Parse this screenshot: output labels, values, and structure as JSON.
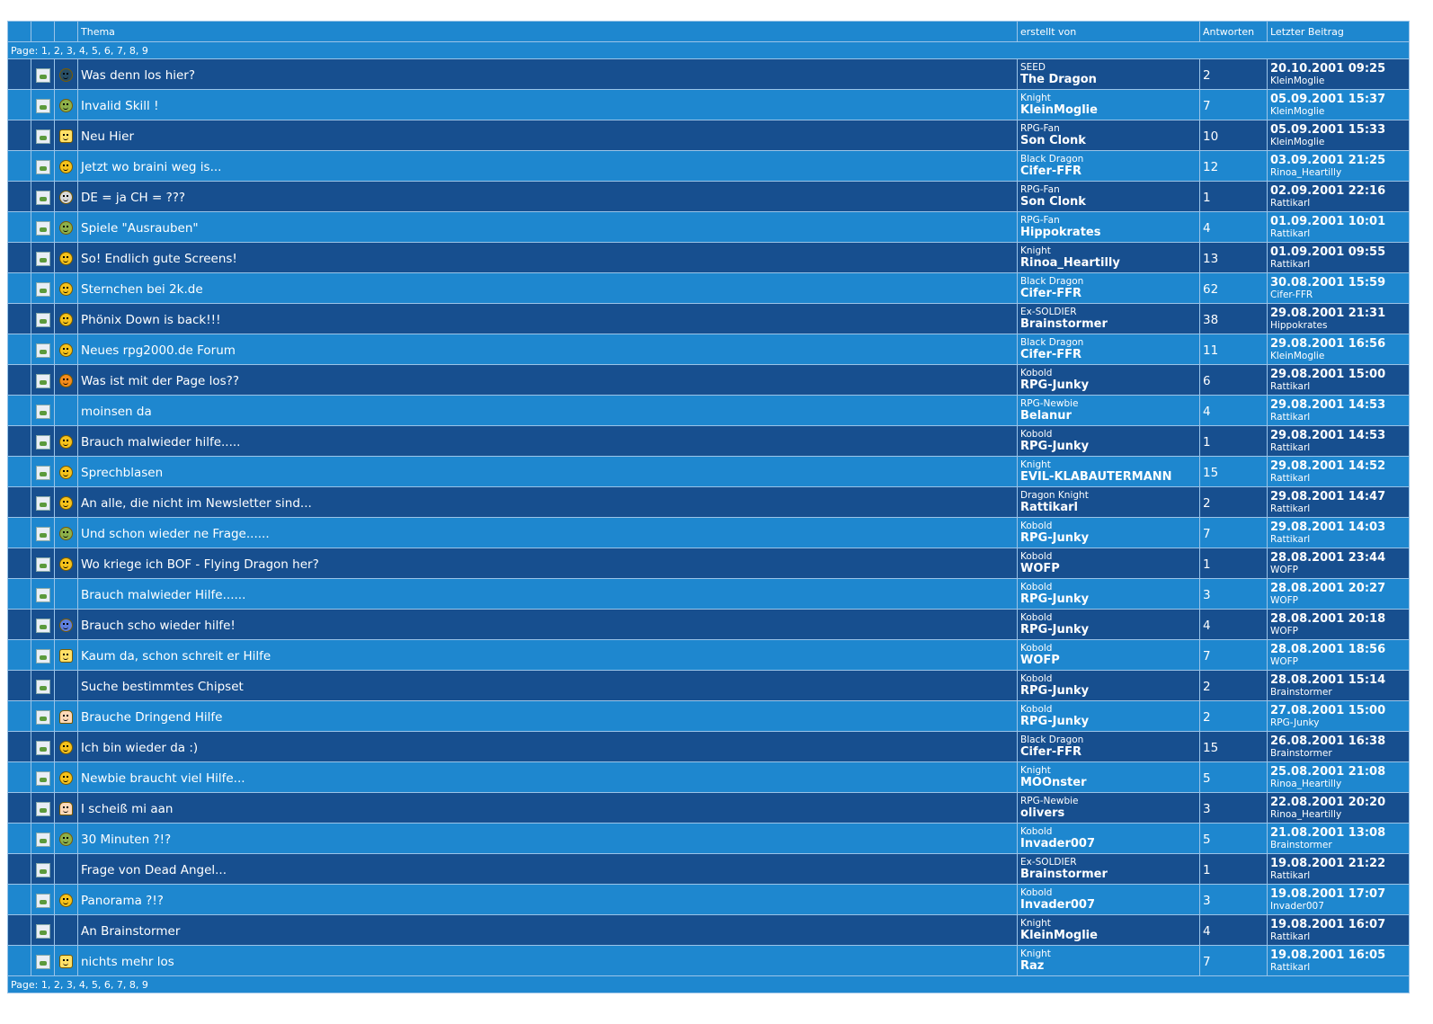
{
  "header": {
    "col_topic": "Thema",
    "col_author": "erstellt von",
    "col_replies": "Antworten",
    "col_last": "Letzter Beitrag"
  },
  "pagination": {
    "label": "Page: ",
    "pages": [
      "1",
      "2",
      "3",
      "4",
      "5",
      "6",
      "7",
      "8",
      "9"
    ]
  },
  "threads": [
    {
      "title": "Was denn los hier?",
      "rank": "SEED",
      "author": "The Dragon",
      "replies": "2",
      "last_date": "20.10.2001 09:25",
      "last_by": "KleinMoglie",
      "icon": "dark-smiley-icon",
      "emo": "dark"
    },
    {
      "title": "Invalid Skill !",
      "rank": "Knight",
      "author": "KleinMoglie",
      "replies": "7",
      "last_date": "05.09.2001 15:37",
      "last_by": "KleinMoglie",
      "icon": "confused-smiley-icon",
      "emo": "green"
    },
    {
      "title": "Neu Hier",
      "rank": "RPG-Fan",
      "author": "Son Clonk",
      "replies": "10",
      "last_date": "05.09.2001 15:33",
      "last_by": "KleinMoglie",
      "icon": "hand-icon",
      "emo": "hand"
    },
    {
      "title": "Jetzt wo braini weg is...",
      "rank": "Black Dragon",
      "author": "Cifer-FFR",
      "replies": "12",
      "last_date": "03.09.2001 21:25",
      "last_by": "Rinoa_Heartilly",
      "icon": "smiley-icon",
      "emo": ""
    },
    {
      "title": "DE = ja CH = ???",
      "rank": "RPG-Fan",
      "author": "Son Clonk",
      "replies": "1",
      "last_date": "02.09.2001 22:16",
      "last_by": "Rattikarl",
      "icon": "sad-smiley-icon",
      "emo": "sad"
    },
    {
      "title": "Spiele \"Ausrauben\"",
      "rank": "RPG-Fan",
      "author": "Hippokrates",
      "replies": "4",
      "last_date": "01.09.2001 10:01",
      "last_by": "Rattikarl",
      "icon": "confused-smiley-icon",
      "emo": "green"
    },
    {
      "title": "So! Endlich gute Screens!",
      "rank": "Knight",
      "author": "Rinoa_Heartilly",
      "replies": "13",
      "last_date": "01.09.2001 09:55",
      "last_by": "Rattikarl",
      "icon": "smiley-icon",
      "emo": ""
    },
    {
      "title": "Sternchen bei 2k.de",
      "rank": "Black Dragon",
      "author": "Cifer-FFR",
      "replies": "62",
      "last_date": "30.08.2001 15:59",
      "last_by": "Cifer-FFR",
      "icon": "smiley-icon",
      "emo": ""
    },
    {
      "title": "Phönix Down is back!!!",
      "rank": "Ex-SOLDIER",
      "author": "Brainstormer",
      "replies": "38",
      "last_date": "29.08.2001 21:31",
      "last_by": "Hippokrates",
      "icon": "smiley-icon",
      "emo": ""
    },
    {
      "title": "Neues rpg2000.de Forum",
      "rank": "Black Dragon",
      "author": "Cifer-FFR",
      "replies": "11",
      "last_date": "29.08.2001 16:56",
      "last_by": "KleinMoglie",
      "icon": "smiley-icon",
      "emo": ""
    },
    {
      "title": "Was ist mit der Page los??",
      "rank": "Kobold",
      "author": "RPG-Junky",
      "replies": "6",
      "last_date": "29.08.2001 15:00",
      "last_by": "Rattikarl",
      "icon": "angry-smiley-icon",
      "emo": "angry"
    },
    {
      "title": "moinsen da",
      "rank": "RPG-Newbie",
      "author": "Belanur",
      "replies": "4",
      "last_date": "29.08.2001 14:53",
      "last_by": "Rattikarl",
      "icon": "",
      "emo": "none"
    },
    {
      "title": "Brauch malwieder hilfe.....",
      "rank": "Kobold",
      "author": "RPG-Junky",
      "replies": "1",
      "last_date": "29.08.2001 14:53",
      "last_by": "Rattikarl",
      "icon": "smiley-icon",
      "emo": ""
    },
    {
      "title": "Sprechblasen",
      "rank": "Knight",
      "author": "EVIL-KLABAUTERMANN",
      "replies": "15",
      "last_date": "29.08.2001 14:52",
      "last_by": "Rattikarl",
      "icon": "smiley-icon",
      "emo": ""
    },
    {
      "title": "An alle, die nicht im Newsletter sind...",
      "rank": "Dragon Knight",
      "author": "Rattikarl",
      "replies": "2",
      "last_date": "29.08.2001 14:47",
      "last_by": "Rattikarl",
      "icon": "smiley-icon",
      "emo": ""
    },
    {
      "title": "Und schon wieder ne Frage......",
      "rank": "Kobold",
      "author": "RPG-Junky",
      "replies": "7",
      "last_date": "29.08.2001 14:03",
      "last_by": "Rattikarl",
      "icon": "confused-smiley-icon",
      "emo": "green"
    },
    {
      "title": "Wo kriege ich BOF - Flying Dragon her?",
      "rank": "Kobold",
      "author": "WOFP",
      "replies": "1",
      "last_date": "28.08.2001 23:44",
      "last_by": "WOFP",
      "icon": "smiley-icon",
      "emo": ""
    },
    {
      "title": "Brauch malwieder Hilfe......",
      "rank": "Kobold",
      "author": "RPG-Junky",
      "replies": "3",
      "last_date": "28.08.2001 20:27",
      "last_by": "WOFP",
      "icon": "",
      "emo": "none"
    },
    {
      "title": "Brauch scho wieder hilfe!",
      "rank": "Kobold",
      "author": "RPG-Junky",
      "replies": "4",
      "last_date": "28.08.2001 20:18",
      "last_by": "WOFP",
      "icon": "blue-smiley-icon",
      "emo": "blue"
    },
    {
      "title": "Kaum da, schon schreit er Hilfe",
      "rank": "Kobold",
      "author": "WOFP",
      "replies": "7",
      "last_date": "28.08.2001 18:56",
      "last_by": "WOFP",
      "icon": "hand-icon",
      "emo": "hand"
    },
    {
      "title": "Suche bestimmtes Chipset",
      "rank": "Kobold",
      "author": "RPG-Junky",
      "replies": "2",
      "last_date": "28.08.2001 15:14",
      "last_by": "Brainstormer",
      "icon": "",
      "emo": "none"
    },
    {
      "title": "Brauche Dringend Hilfe",
      "rank": "Kobold",
      "author": "RPG-Junky",
      "replies": "2",
      "last_date": "27.08.2001 15:00",
      "last_by": "RPG-Junky",
      "icon": "ghost-icon",
      "emo": "ghost"
    },
    {
      "title": "Ich bin wieder da :)",
      "rank": "Black Dragon",
      "author": "Cifer-FFR",
      "replies": "15",
      "last_date": "26.08.2001 16:38",
      "last_by": "Brainstormer",
      "icon": "smiley-icon",
      "emo": ""
    },
    {
      "title": "Newbie braucht viel Hilfe...",
      "rank": "Knight",
      "author": "MOOnster",
      "replies": "5",
      "last_date": "25.08.2001 21:08",
      "last_by": "Rinoa_Heartilly",
      "icon": "smiley-icon",
      "emo": ""
    },
    {
      "title": "I scheiß mi aan",
      "rank": "RPG-Newbie",
      "author": "olivers",
      "replies": "3",
      "last_date": "22.08.2001 20:20",
      "last_by": "Rinoa_Heartilly",
      "icon": "ghost-icon",
      "emo": "ghost"
    },
    {
      "title": "30 Minuten ?!?",
      "rank": "Kobold",
      "author": "Invader007",
      "replies": "5",
      "last_date": "21.08.2001 13:08",
      "last_by": "Brainstormer",
      "icon": "confused-smiley-icon",
      "emo": "green"
    },
    {
      "title": "Frage von Dead Angel...",
      "rank": "Ex-SOLDIER",
      "author": "Brainstormer",
      "replies": "1",
      "last_date": "19.08.2001 21:22",
      "last_by": "Rattikarl",
      "icon": "",
      "emo": "none"
    },
    {
      "title": "Panorama ?!?",
      "rank": "Kobold",
      "author": "Invader007",
      "replies": "3",
      "last_date": "19.08.2001 17:07",
      "last_by": "Invader007",
      "icon": "smiley-icon",
      "emo": ""
    },
    {
      "title": "An Brainstormer",
      "rank": "Knight",
      "author": "KleinMoglie",
      "replies": "4",
      "last_date": "19.08.2001 16:07",
      "last_by": "Rattikarl",
      "icon": "",
      "emo": "none"
    },
    {
      "title": "nichts mehr los",
      "rank": "Knight",
      "author": "Raz",
      "replies": "7",
      "last_date": "19.08.2001 16:05",
      "last_by": "Rattikarl",
      "icon": "surprised-smiley-icon",
      "emo": "hand"
    }
  ]
}
